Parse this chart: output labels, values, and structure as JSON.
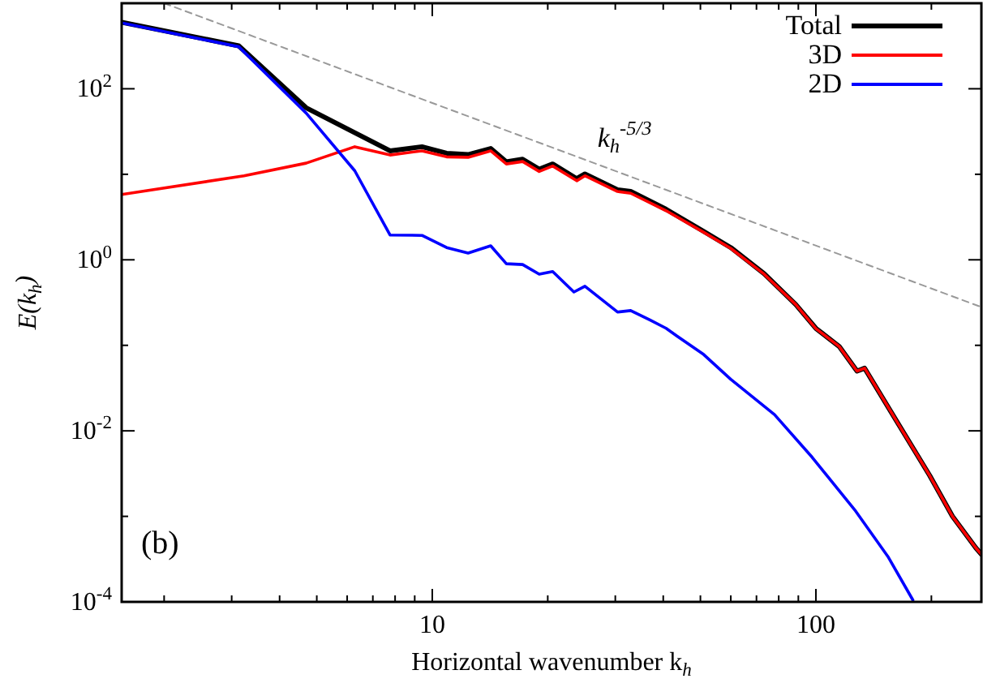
{
  "chart_data": {
    "type": "line",
    "xlabel": "Horizontal wavenumber k$_{h}$",
    "ylabel": "E(k$_{h}$)",
    "log": "xy",
    "grid": false,
    "legend": "top right",
    "line_style": "solid",
    "marker": "none",
    "xlim": [
      1.55,
      270
    ],
    "ylim": [
      0.0001,
      1000
    ],
    "xticks": [
      {
        "value": 2,
        "label": null
      },
      {
        "value": 3,
        "label": null
      },
      {
        "value": 4,
        "label": null
      },
      {
        "value": 5,
        "label": null
      },
      {
        "value": 6,
        "label": null
      },
      {
        "value": 7,
        "label": null
      },
      {
        "value": 8,
        "label": null
      },
      {
        "value": 9,
        "label": null
      },
      10,
      {
        "value": 20,
        "label": null
      },
      {
        "value": 30,
        "label": null
      },
      {
        "value": 40,
        "label": null
      },
      {
        "value": 50,
        "label": null
      },
      {
        "value": 60,
        "label": null
      },
      {
        "value": 70,
        "label": null
      },
      {
        "value": 80,
        "label": null
      },
      {
        "value": 90,
        "label": null
      },
      100,
      {
        "value": 200,
        "label": null
      }
    ],
    "yticks": [
      {
        "value": 0.0001,
        "label": "10$^{-4}$"
      },
      {
        "value": 0.001,
        "label": null
      },
      {
        "value": 0.01,
        "label": "10$^{-2}$"
      },
      {
        "value": 0.1,
        "label": null
      },
      {
        "value": 1,
        "label": "10$^{0}$"
      },
      {
        "value": 10,
        "label": null
      },
      {
        "value": 100,
        "label": "10$^{2}$"
      }
    ],
    "series": [
      {
        "name": "Total",
        "color": "#000000",
        "x": [
          1.55,
          3.13,
          4.69,
          7.76,
          9.4,
          10.9,
          12.4,
          14.2,
          15.6,
          17.2,
          19,
          20.6,
          23.8,
          25,
          30.4,
          32.9,
          40.7,
          51,
          60,
          73.3,
          88.6,
          100,
          115,
          128,
          134,
          163,
          198,
          227,
          261,
          270
        ],
        "values": [
          600,
          318,
          60,
          18.8,
          21,
          17.6,
          17,
          20,
          14,
          15,
          11.5,
          13.2,
          8.9,
          10.1,
          6.6,
          6.3,
          3.9,
          2.15,
          1.39,
          0.69,
          0.3,
          0.158,
          0.097,
          0.05,
          0.054,
          0.0126,
          0.003,
          0.001,
          0.00043,
          0.00036
        ]
      },
      {
        "name": "3D",
        "color": "#ff0000",
        "x": [
          1.55,
          3.23,
          4.69,
          6.28,
          7.76,
          9.4,
          10.9,
          12.4,
          14.2,
          15.6,
          17.2,
          19,
          20.6,
          23.8,
          25,
          30.4,
          32.9,
          40.7,
          51,
          60,
          73.3,
          88.6,
          100,
          115,
          128,
          134,
          163,
          198,
          227,
          261,
          270
        ],
        "values": [
          5.8,
          9.6,
          13.5,
          21,
          16.8,
          18.8,
          16,
          15.8,
          18.8,
          13.2,
          14.1,
          10.8,
          12.5,
          8.4,
          9.6,
          6.3,
          6,
          3.75,
          2.1,
          1.36,
          0.68,
          0.3,
          0.157,
          0.097,
          0.05,
          0.054,
          0.0126,
          0.003,
          0.001,
          0.00043,
          0.00036
        ]
      },
      {
        "name": "2D",
        "color": "#0000ff",
        "x": [
          1.55,
          3.13,
          4.69,
          6.28,
          7.76,
          9.4,
          10.9,
          12.4,
          14.2,
          15.6,
          17.2,
          19,
          20.6,
          23.4,
          25,
          30.4,
          32.9,
          37,
          40.7,
          43.5,
          51,
          60,
          78,
          97.8,
          127,
          154,
          179
        ],
        "values": [
          590,
          310,
          52,
          11,
          1.95,
          1.93,
          1.39,
          1.2,
          1.46,
          0.9,
          0.88,
          0.68,
          0.73,
          0.42,
          0.49,
          0.245,
          0.255,
          0.197,
          0.158,
          0.128,
          0.078,
          0.04,
          0.0155,
          0.0049,
          0.00115,
          0.00034,
          0.000105
        ]
      },
      {
        "type": "line",
        "color": "#999999",
        "line_style": "dashed",
        "x": [
          2,
          270
        ],
        "values": [
          1000,
          0.28
        ]
      }
    ],
    "annotations": [
      "k$_{h}$$^{-5/3}$",
      "(b)"
    ]
  }
}
